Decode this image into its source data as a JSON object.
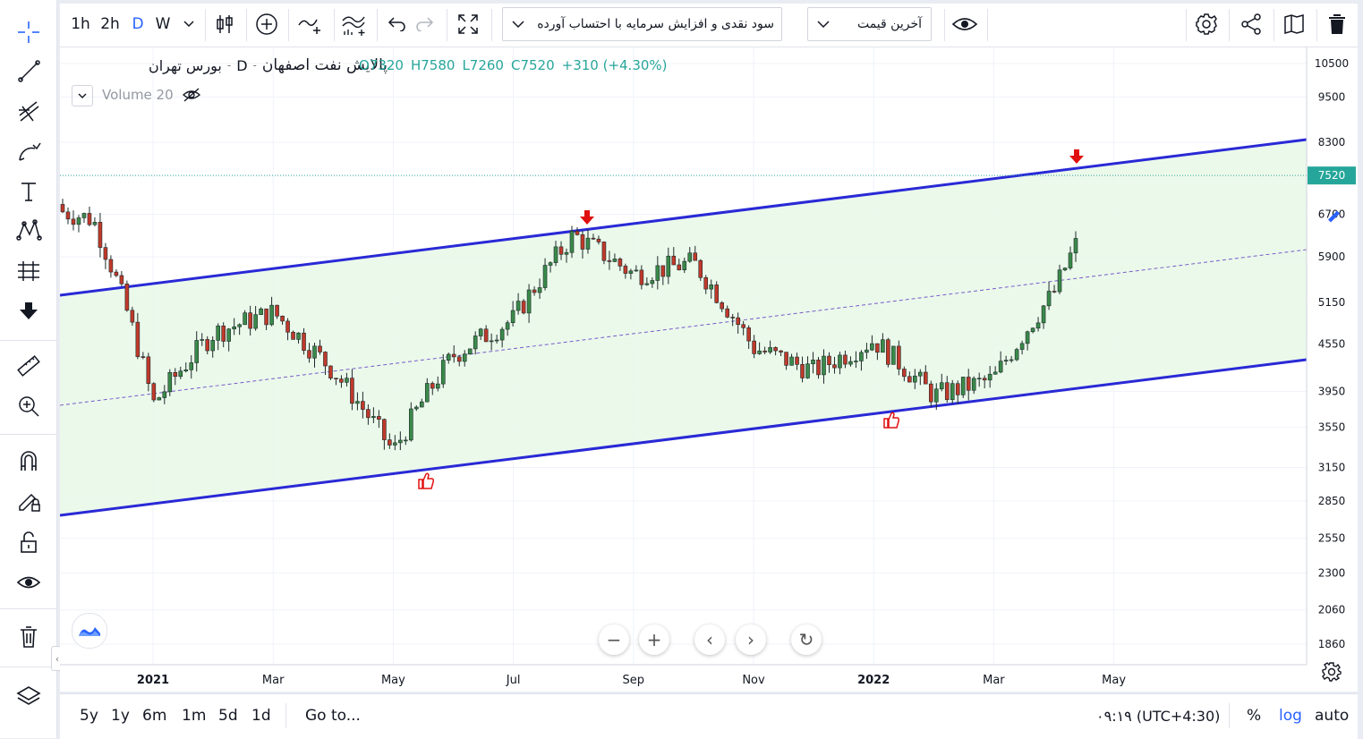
{
  "toolbar": {
    "intervals": [
      "1h",
      "2h",
      "D",
      "W"
    ],
    "active_interval": "D",
    "indicator_dropdown": "سود نقدی و افزایش سرمایه با احتساب آورده",
    "price_type_dropdown": "آخرین قیمت",
    "icons": [
      "candles-icon",
      "add-indicator-icon",
      "compare-icon",
      "indicators-icon",
      "undo-icon",
      "redo-icon",
      "fullscreen-icon",
      "eye-icon",
      "settings-icon",
      "share-icon",
      "snapshot-icon",
      "trash-icon"
    ]
  },
  "left_tools": [
    "crosshair-icon",
    "trend-line-icon",
    "pitchfork-icon",
    "brush-icon",
    "text-icon",
    "pattern-icon",
    "prediction-icon",
    "arrow-down-icon",
    "ruler-icon",
    "zoom-in-icon",
    "magnet-icon",
    "lock-drawing-icon",
    "unlock-icon",
    "eye-icon",
    "trash-icon",
    "layers-icon"
  ],
  "legend": {
    "symbol": "پالایش نفت اصفهان",
    "interval": "D",
    "exchange": "بورس تهران",
    "sep": "-",
    "open": "O7320",
    "high": "H7580",
    "low": "L7260",
    "close": "C7520",
    "change": "+310 (+4.30%)",
    "volume_label": "Volume 20"
  },
  "price_axis": {
    "ticks": [
      "10500",
      "9500",
      "8300",
      "7520",
      "6700",
      "5900",
      "5150",
      "4550",
      "3950",
      "3550",
      "3150",
      "2850",
      "2550",
      "2300",
      "2060",
      "1860"
    ],
    "current_price": "7520",
    "current_price_color": "#26a69a"
  },
  "time_axis": {
    "labels": [
      "2021",
      "Mar",
      "May",
      "Jul",
      "Sep",
      "Nov",
      "2022",
      "Mar",
      "May"
    ]
  },
  "bottom_bar": {
    "ranges": [
      "5y",
      "1y",
      "6m",
      "1m",
      "5d",
      "1d"
    ],
    "goto": "Go to...",
    "time": "۰۹:۱۹ (UTC+4:30)",
    "percent": "%",
    "log": "log",
    "auto": "auto"
  },
  "colors": {
    "channel_line": "#2929d6",
    "channel_fill": "#e8f8e8",
    "up_candle": "#3a8a4a",
    "down_candle": "#c0392b",
    "accent": "#2962ff",
    "arrow_marker": "#e01010"
  },
  "chart_data": {
    "type": "candlestick",
    "symbol": "پالایش نفت اصفهان",
    "scale": "log",
    "ylim": [
      1700,
      11500
    ],
    "x": [
      "2020-11",
      "2020-12",
      "2021-01",
      "2021-02",
      "2021-03",
      "2021-04",
      "2021-05",
      "2021-06",
      "2021-07",
      "2021-08",
      "2021-09",
      "2021-10",
      "2021-11",
      "2021-12",
      "2022-01",
      "2022-02",
      "2022-03",
      "2022-04",
      "2022-05"
    ],
    "close": [
      6900,
      6600,
      3800,
      4700,
      5000,
      4200,
      3300,
      4400,
      4900,
      6300,
      5600,
      5800,
      4500,
      4200,
      4600,
      3900,
      4100,
      5300,
      7520
    ],
    "last": {
      "open": 7320,
      "high": 7580,
      "low": 7260,
      "close": 7520,
      "change": 310,
      "change_pct": 4.3
    },
    "annotations": [
      "channel-upper",
      "channel-lower",
      "channel-median",
      "arrow-down-at-top",
      "thumbs-up-at-bottom"
    ]
  }
}
